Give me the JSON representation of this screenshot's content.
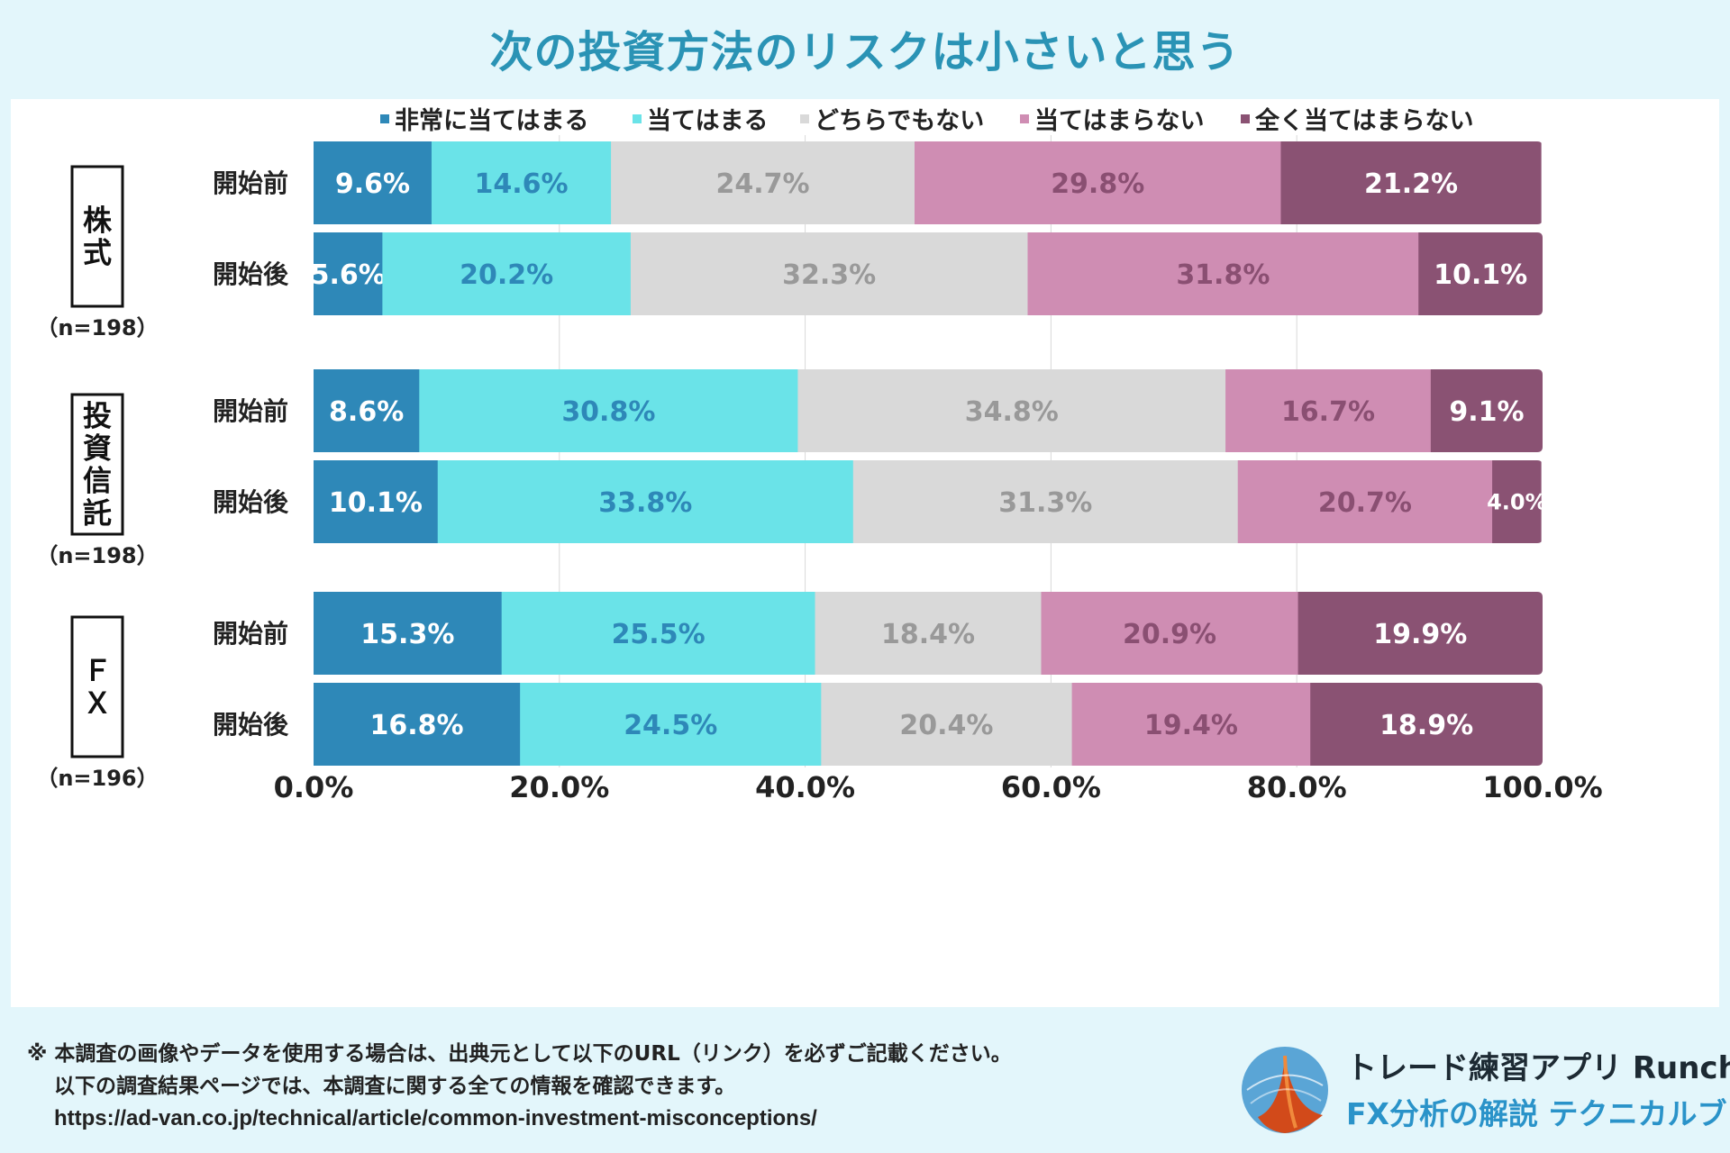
{
  "title": "次の投資方法のリスクは小さいと思う",
  "colors": [
    "#2e88b8",
    "#6ae3e8",
    "#d9d9d9",
    "#cf8db3",
    "#8a5273"
  ],
  "label_colors": [
    "#ffffff",
    "#2e88b8",
    "#999999",
    "#8a4f72",
    "#ffffff"
  ],
  "chart_data": {
    "type": "bar",
    "orientation": "horizontal-stacked",
    "legend": [
      "非常に当てはまる",
      "当てはまる",
      "どちらでもない",
      "当てはまらない",
      "全く当てはまらない"
    ],
    "groups": [
      {
        "name": "株式",
        "n": "（n=198）",
        "rows": [
          {
            "label": "開始前",
            "values": [
              9.6,
              14.6,
              24.7,
              29.8,
              21.2
            ],
            "labels": [
              "9.6%",
              "14.6%",
              "24.7%",
              "29.8%",
              "21.2%"
            ]
          },
          {
            "label": "開始後",
            "values": [
              5.6,
              20.2,
              32.3,
              31.8,
              10.1
            ],
            "labels": [
              "5.6%",
              "20.2%",
              "32.3%",
              "31.8%",
              "10.1%"
            ]
          }
        ]
      },
      {
        "name": "投資信託",
        "n": "（n=198）",
        "rows": [
          {
            "label": "開始前",
            "values": [
              8.6,
              30.8,
              34.8,
              16.7,
              9.1
            ],
            "labels": [
              "8.6%",
              "30.8%",
              "34.8%",
              "16.7%",
              "9.1%"
            ]
          },
          {
            "label": "開始後",
            "values": [
              10.1,
              33.8,
              31.3,
              20.7,
              4.0
            ],
            "labels": [
              "10.1%",
              "33.8%",
              "31.3%",
              "20.7%",
              "4.0%"
            ]
          }
        ]
      },
      {
        "name": "ＦＸ",
        "n": "（n=196）",
        "rows": [
          {
            "label": "開始前",
            "values": [
              15.3,
              25.5,
              18.4,
              20.9,
              19.9
            ],
            "labels": [
              "15.3%",
              "25.5%",
              "18.4%",
              "20.9%",
              "19.9%"
            ]
          },
          {
            "label": "開始後",
            "values": [
              16.8,
              24.5,
              20.4,
              19.4,
              18.9
            ],
            "labels": [
              "16.8%",
              "24.5%",
              "20.4%",
              "19.4%",
              "18.9%"
            ]
          }
        ]
      }
    ],
    "xlim": [
      0,
      100
    ],
    "xticks": [
      "0.0%",
      "20.0%",
      "40.0%",
      "60.0%",
      "80.0%",
      "100.0%"
    ]
  },
  "footer": {
    "line1": "※ 本調査の画像やデータを使用する場合は、出典元として以下のURL（リンク）を必ずご記載ください。",
    "line2": "以下の調査結果ページでは、本調査に関する全ての情報を確認できます。",
    "url": "https://ad-van.co.jp/technical/article/common-investment-misconceptions/"
  },
  "brand": {
    "app_name": "トレード練習アプリ  Runcha",
    "sub_name": "FX分析の解説  テクニカルブック"
  }
}
